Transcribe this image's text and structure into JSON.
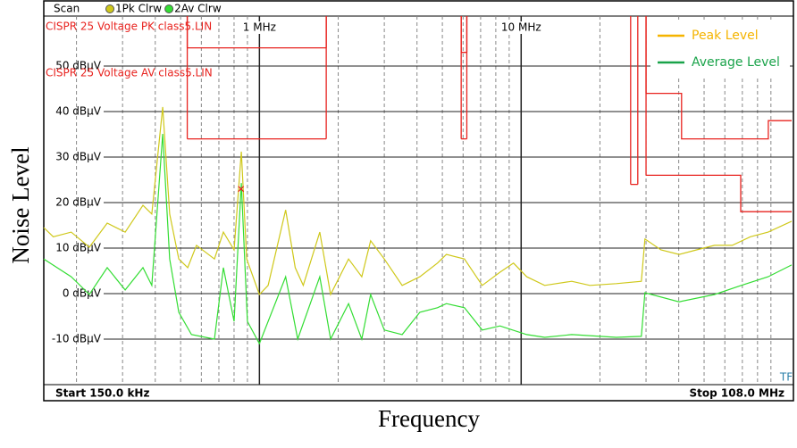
{
  "chart_data": {
    "type": "line",
    "header": {
      "mode": "Scan",
      "traces": [
        "1Pk Clrw",
        "2Av Clrw"
      ]
    },
    "xlabel": "Frequency",
    "ylabel": "Noise Level",
    "start_label": "Start 150.0 kHz",
    "stop_label": "Stop 108.0 MHz",
    "corner_label": "TF",
    "xscale": "log",
    "xlim": [
      0.15,
      108
    ],
    "ylim": [
      -20,
      60
    ],
    "xticks": [
      {
        "value": 1,
        "label": "1 MHz"
      },
      {
        "value": 10,
        "label": "10 MHz"
      }
    ],
    "xminorticks": [
      0.2,
      0.3,
      0.4,
      0.5,
      0.6,
      0.7,
      0.8,
      0.9,
      2,
      3,
      4,
      5,
      6,
      7,
      8,
      9,
      20,
      30,
      40,
      50,
      60,
      70,
      80,
      90
    ],
    "yticks": [
      {
        "value": -10,
        "label": "-10 dBµV"
      },
      {
        "value": 0,
        "label": "0 dBµV"
      },
      {
        "value": 10,
        "label": "10 dBµV"
      },
      {
        "value": 20,
        "label": "20 dBµV"
      },
      {
        "value": 30,
        "label": "30 dBµV"
      },
      {
        "value": 40,
        "label": "40 dBµV"
      },
      {
        "value": 50,
        "label": "50 dBµV"
      }
    ],
    "legend": "upper right",
    "series": [
      {
        "name": "Peak Level",
        "color": "#cfc81a",
        "legend_color": "#f5b400",
        "x": [
          0.15,
          0.163,
          0.191,
          0.224,
          0.262,
          0.307,
          0.359,
          0.388,
          0.427,
          0.454,
          0.492,
          0.532,
          0.575,
          0.673,
          0.728,
          0.8,
          0.853,
          0.894,
          1.0,
          1.08,
          1.26,
          1.37,
          1.47,
          1.7,
          1.87,
          2.19,
          2.46,
          2.66,
          3.0,
          3.51,
          4.1,
          4.79,
          5.18,
          6.07,
          7.1,
          8.3,
          9.35,
          10.5,
          12.3,
          15.6,
          18.3,
          23.1,
          28.8,
          29.7,
          34.2,
          40.1,
          46.8,
          54.8,
          64.1,
          75.1,
          87.8,
          108
        ],
        "values": [
          14.5,
          12.5,
          13.5,
          10.2,
          15.5,
          13.5,
          19.4,
          17.5,
          41.0,
          17.5,
          7.6,
          5.7,
          10.6,
          7.6,
          13.5,
          9.6,
          31.2,
          7.6,
          -0.2,
          1.8,
          18.4,
          5.7,
          1.8,
          13.5,
          -0.2,
          7.6,
          3.7,
          11.6,
          7.6,
          1.8,
          3.7,
          6.7,
          8.6,
          7.6,
          1.8,
          4.7,
          6.7,
          3.7,
          1.8,
          2.7,
          1.8,
          2.2,
          2.7,
          12.0,
          9.6,
          8.6,
          9.6,
          10.6,
          10.6,
          12.5,
          13.5,
          15.9
        ]
      },
      {
        "name": "Average Level",
        "color": "#33dd33",
        "legend_color": "#1aa34a",
        "x": [
          0.15,
          0.191,
          0.224,
          0.262,
          0.307,
          0.359,
          0.388,
          0.427,
          0.454,
          0.492,
          0.55,
          0.673,
          0.728,
          0.8,
          0.853,
          0.9,
          1.0,
          1.26,
          1.4,
          1.7,
          1.87,
          2.19,
          2.46,
          2.66,
          3.0,
          3.51,
          4.1,
          4.79,
          5.18,
          6.07,
          7.1,
          8.3,
          10.5,
          12.3,
          15.6,
          23.1,
          28.8,
          29.7,
          40.1,
          54.8,
          69.3,
          87.8,
          108
        ],
        "values": [
          7.6,
          3.7,
          -0.2,
          5.7,
          0.8,
          5.7,
          1.8,
          35.1,
          7.6,
          -4.1,
          -9.0,
          -10.0,
          5.7,
          -6.1,
          24.3,
          -6.1,
          -11.0,
          3.7,
          -10.0,
          3.7,
          -10.0,
          -2.2,
          -10.0,
          -0.2,
          -8.0,
          -9.0,
          -4.1,
          -3.1,
          -2.2,
          -3.1,
          -8.0,
          -7.1,
          -9.0,
          -9.6,
          -9.0,
          -9.6,
          -9.4,
          0.2,
          -1.8,
          -0.2,
          1.8,
          3.7,
          6.3
        ]
      }
    ],
    "limits": [
      {
        "name": "CISPR 25 Voltage PK class5.LIN",
        "color": "#e8231f",
        "x": [
          0.53,
          1.8,
          null,
          5.9,
          6.2,
          null,
          30,
          41,
          41,
          88,
          88,
          108
        ],
        "values": [
          54,
          54,
          null,
          53,
          53,
          null,
          44,
          44,
          34,
          34,
          38,
          38
        ]
      },
      {
        "name": "CISPR 25 Voltage AV class5.LIN",
        "color": "#e8231f",
        "x": [
          0.53,
          1.8,
          null,
          5.9,
          6.2,
          null,
          26.2,
          27.9,
          null,
          30,
          69,
          69,
          108
        ],
        "values": [
          34,
          34,
          null,
          34,
          34,
          null,
          24,
          24,
          null,
          26,
          26,
          18,
          18
        ]
      }
    ],
    "marker": {
      "x": 0.85,
      "value": 23,
      "color": "#e8231f"
    }
  }
}
